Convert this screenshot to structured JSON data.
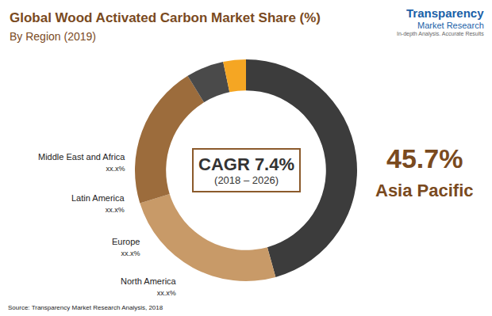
{
  "chart_data": {
    "type": "pie",
    "title": "Global Wood Activated Carbon Market Share (%)",
    "subtitle": "By Region (2019)",
    "categories": [
      "Asia Pacific",
      "North America",
      "Europe",
      "Latin America",
      "Middle East and Africa"
    ],
    "values": [
      45.7,
      24.5,
      21.0,
      5.5,
      3.3
    ],
    "value_labels": [
      "45.7%",
      "xx.x%",
      "xx.x%",
      "xx.x%",
      "xx.x%"
    ],
    "colors": [
      "#3c3c3c",
      "#c89a68",
      "#9c6c3c",
      "#4a4a4a",
      "#f5a623"
    ],
    "data_labels": true,
    "annotations": [
      "CAGR 7.4%",
      "(2018 – 2026)"
    ],
    "source": "Source: Transparency Market Research Analysis, 2018",
    "logo": [
      "Transparency",
      "Market Research",
      "In-depth Analysis. Accurate Results"
    ]
  }
}
